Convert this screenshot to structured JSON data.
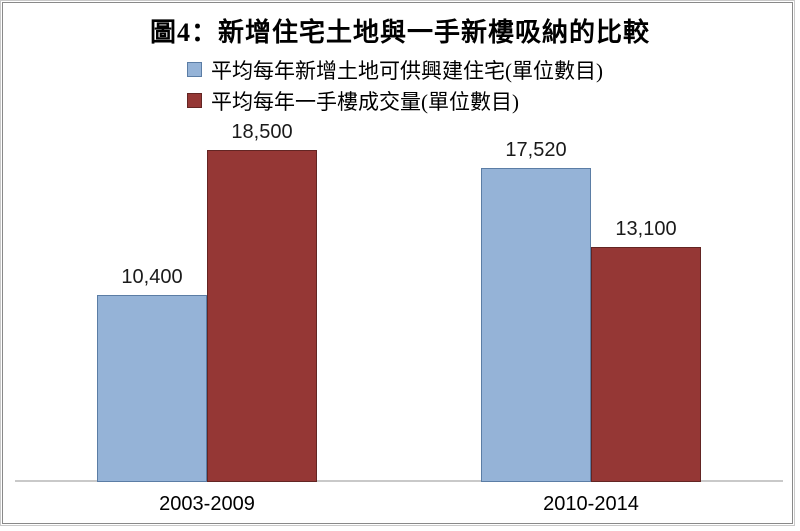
{
  "title": "圖4：新增住宅土地與一手新樓吸納的比較",
  "chart_data": {
    "type": "bar",
    "title": "圖4：新增住宅土地與一手新樓吸納的比較",
    "categories": [
      "2003-2009",
      "2010-2014"
    ],
    "series": [
      {
        "name": "平均每年新增土地可供興建住宅(單位數目)",
        "values": [
          10400,
          17520
        ],
        "labels": [
          "10,400",
          "17,520"
        ],
        "fill": "#95B3D7",
        "border": "#5B7DA5"
      },
      {
        "name": "平均每年一手樓成交量(單位數目)",
        "values": [
          18500,
          13100
        ],
        "labels": [
          "18,500",
          "13,100"
        ],
        "fill": "#953735",
        "border": "#632523"
      }
    ],
    "ylim": [
      0,
      20000
    ],
    "grid": false,
    "y_axis_visible": false,
    "legend_position": "top-left-stacked",
    "data_labels": true,
    "axis_line_color": "#C9C9C9",
    "data_label_color": "#1A1A1A"
  }
}
